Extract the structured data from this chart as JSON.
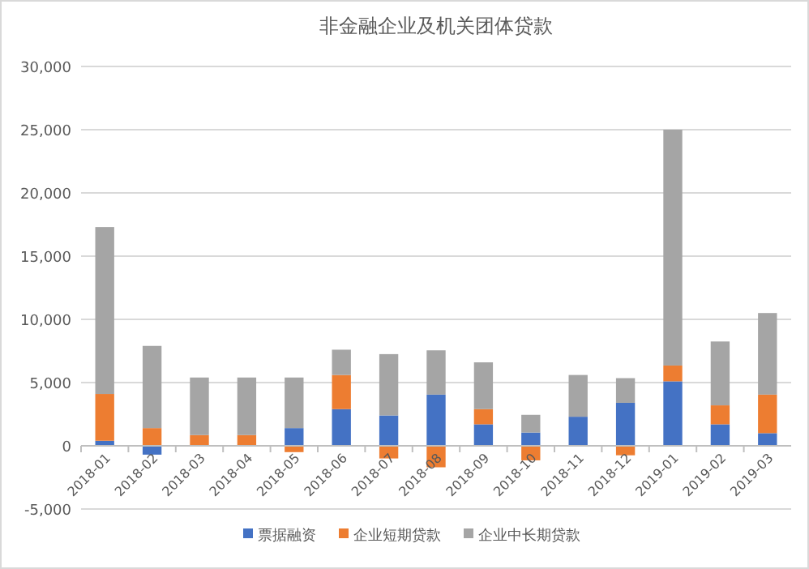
{
  "chart_data": {
    "type": "bar",
    "title": "非金融企业及机关团体贷款",
    "stacked": true,
    "grid": "y",
    "legend": "bottom",
    "categories": [
      "2018-01",
      "2018-02",
      "2018-03",
      "2018-04",
      "2018-05",
      "2018-06",
      "2018-07",
      "2018-08",
      "2018-09",
      "2018-10",
      "2018-11",
      "2018-12",
      "2019-01",
      "2019-02",
      "2019-03"
    ],
    "ylim": [
      -5000,
      30000
    ],
    "yticks": [
      {
        "value": -5000,
        "label": "-5,000"
      },
      0,
      {
        "value": 5000,
        "label": "5,000"
      },
      {
        "value": 10000,
        "label": "10,000"
      },
      {
        "value": 15000,
        "label": "15,000"
      },
      {
        "value": 20000,
        "label": "20,000"
      },
      {
        "value": 25000,
        "label": "25,000"
      },
      {
        "value": 30000,
        "label": "30,000"
      }
    ],
    "series": [
      {
        "name": "票据融资",
        "color": "#4472c4",
        "values": [
          400,
          -700,
          0,
          0,
          1400,
          2900,
          2400,
          4050,
          1700,
          1050,
          2300,
          3400,
          5100,
          1700,
          1000
        ]
      },
      {
        "name": "企业短期贷款",
        "color": "#ed7d31",
        "values": [
          3700,
          1400,
          850,
          850,
          -500,
          2700,
          -1000,
          -1700,
          1200,
          -1150,
          0,
          -750,
          1250,
          1500,
          3050
        ]
      },
      {
        "name": "企业中长期贷款",
        "color": "#a5a5a5",
        "values": [
          13200,
          6500,
          4550,
          4550,
          4000,
          2000,
          4850,
          3500,
          3700,
          1400,
          3300,
          1950,
          18650,
          5050,
          6450
        ]
      }
    ]
  }
}
